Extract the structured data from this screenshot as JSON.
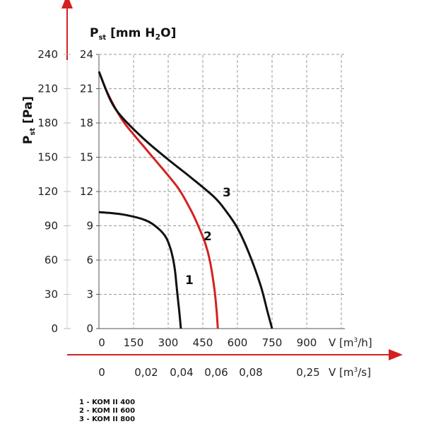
{
  "chart_data": {
    "type": "line",
    "title": "",
    "y_left_pa": {
      "label_main": "P",
      "label_sub": "st",
      "label_unit": " [Pa]",
      "ticks": [
        "0",
        "30",
        "60",
        "90",
        "120",
        "150",
        "180",
        "210",
        "240"
      ],
      "ylim": [
        0,
        240
      ]
    },
    "y_inner_mm": {
      "label_main": "P",
      "label_sub": "st",
      "label_unit_pre": " [mm H",
      "label_unit_sub": "2",
      "label_unit_post": "O]",
      "ticks": [
        "0",
        "3",
        "6",
        "9",
        "12",
        "15",
        "18",
        "21",
        "24"
      ],
      "ylim": [
        0,
        24
      ]
    },
    "x_m3h": {
      "label_pre": "V [m",
      "label_sup": "3",
      "label_post": "/h]",
      "ticks": [
        "0",
        "150",
        "300",
        "450",
        "600",
        "750",
        "900"
      ],
      "xlim": [
        0,
        1050
      ]
    },
    "x_m3s": {
      "label_pre": "V [m",
      "label_sup": "3",
      "label_post": "/s]",
      "ticks": [
        "0",
        "0,02",
        "0,04",
        "0,06",
        "0,08",
        "0,25"
      ]
    },
    "grid": true,
    "series": [
      {
        "name": "1",
        "color": "#111111",
        "x": [
          0,
          100,
          200,
          255,
          290,
          310,
          322,
          330,
          335,
          340,
          348,
          355
        ],
        "y": [
          102,
          100,
          95,
          88,
          80,
          70,
          60,
          50,
          40,
          30,
          15,
          0
        ]
      },
      {
        "name": "2",
        "color": "#d42020",
        "x": [
          0,
          40,
          100,
          150,
          200,
          250,
          300,
          350,
          400,
          430,
          460,
          480,
          500,
          510,
          515
        ],
        "y": [
          225,
          205,
          183,
          170,
          158,
          146,
          134,
          121,
          103,
          90,
          75,
          60,
          35,
          15,
          0
        ]
      },
      {
        "name": "3",
        "color": "#111111",
        "x": [
          0,
          50,
          100,
          200,
          300,
          400,
          500,
          550,
          600,
          650,
          700,
          730,
          750
        ],
        "y": [
          225,
          200,
          185,
          165,
          148,
          132,
          115,
          103,
          88,
          66,
          38,
          15,
          0
        ]
      }
    ],
    "curve_labels": [
      "1",
      "2",
      "3"
    ],
    "legend": [
      "1 - KOM II 400",
      "2 - KOM II 600",
      "3 - KOM II 800"
    ]
  }
}
